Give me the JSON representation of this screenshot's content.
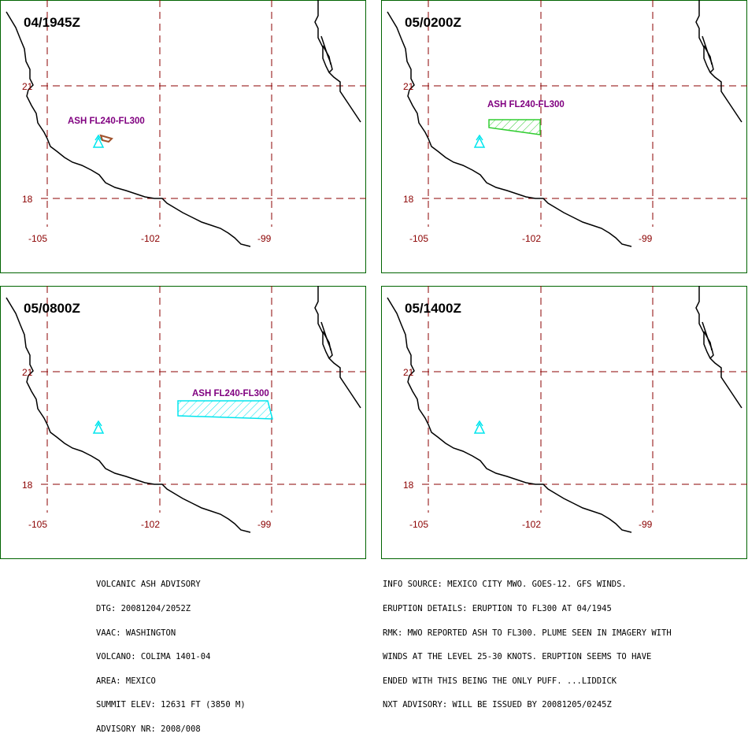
{
  "panels": [
    {
      "time": "04/1945Z",
      "ash_label": "ASH FL240-FL300",
      "lat_labels": [
        "21",
        "18"
      ],
      "lon_labels": [
        "-105",
        "-102",
        "-99"
      ]
    },
    {
      "time": "05/0200Z",
      "ash_label": "ASH FL240-FL300",
      "lat_labels": [
        "21",
        "18"
      ],
      "lon_labels": [
        "-105",
        "-102",
        "-99"
      ]
    },
    {
      "time": "05/0800Z",
      "ash_label": "ASH FL240-FL300",
      "lat_labels": [
        "21",
        "18"
      ],
      "lon_labels": [
        "-105",
        "-102",
        "-99"
      ]
    },
    {
      "time": "05/1400Z",
      "lat_labels": [
        "21",
        "18"
      ],
      "lon_labels": [
        "-105",
        "-102",
        "-99"
      ]
    }
  ],
  "advisory_left": [
    "VOLCANIC ASH ADVISORY",
    "DTG: 20081204/2052Z",
    "VAAC: WASHINGTON",
    "VOLCANO: COLIMA 1401-04",
    "AREA: MEXICO",
    "SUMMIT ELEV: 12631 FT (3850 M)",
    "ADVISORY NR: 2008/008"
  ],
  "advisory_right": [
    "INFO SOURCE: MEXICO CITY MWO. GOES-12. GFS WINDS.",
    "ERUPTION DETAILS: ERUPTION TO FL300 AT 04/1945",
    "RMK: MWO REPORTED ASH TO FL300. PLUME SEEN IN IMAGERY WITH",
    "WINDS AT THE LEVEL 25-30 KNOTS. ERUPTION SEEMS TO HAVE",
    "ENDED WITH THIS BEING THE ONLY PUFF. ...LIDDICK",
    "NXT ADVISORY: WILL BE ISSUED BY 20081205/0245Z"
  ],
  "colors": {
    "frame": "#006400",
    "grid": "#8b0000",
    "coast": "#000000",
    "volcano": "#00e5ee",
    "ash_label": "#800080",
    "ash_initial": "#a0522d",
    "ash_0200": "#32cd32",
    "ash_0800": "#00e5ee"
  }
}
